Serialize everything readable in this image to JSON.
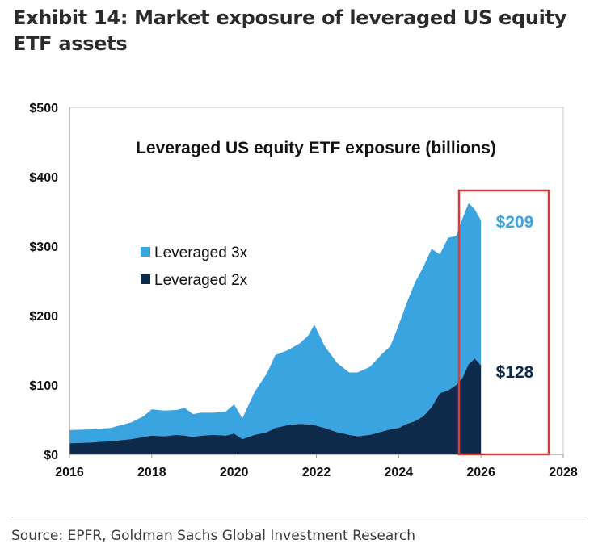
{
  "exhibit_title": "Exhibit 14: Market exposure of leveraged US equity ETF assets",
  "source": "Source: EPFR, Goldman Sachs Global Investment Research",
  "colors": {
    "lev3x": "#3aa4e0",
    "lev2x": "#0d2a4a",
    "highlight": "#d93a3a",
    "callout3x": "#3aa4e0",
    "callout2x": "#0d2a4a"
  },
  "chart_data": {
    "type": "area",
    "stacked": true,
    "title": "Leveraged US equity ETF exposure (billions)",
    "xlabel": "",
    "ylabel": "",
    "xlim": [
      2016,
      2028
    ],
    "ylim": [
      0,
      500
    ],
    "x_ticks": [
      "2016",
      "2018",
      "2020",
      "2022",
      "2024",
      "2026",
      "2028"
    ],
    "y_ticks": [
      "$0",
      "$100",
      "$200",
      "$300",
      "$400",
      "$500"
    ],
    "grid": false,
    "legend_position": "left",
    "x": [
      2016.0,
      2016.5,
      2017.0,
      2017.5,
      2017.8,
      2018.0,
      2018.3,
      2018.6,
      2018.8,
      2019.0,
      2019.2,
      2019.5,
      2019.8,
      2020.0,
      2020.2,
      2020.5,
      2020.8,
      2021.0,
      2021.3,
      2021.6,
      2021.8,
      2021.95,
      2022.2,
      2022.5,
      2022.8,
      2023.0,
      2023.3,
      2023.6,
      2023.8,
      2024.0,
      2024.2,
      2024.4,
      2024.6,
      2024.8,
      2025.0,
      2025.2,
      2025.4,
      2025.55,
      2025.7,
      2025.85,
      2026.0
    ],
    "series": [
      {
        "name": "Leveraged 2x",
        "values": [
          16,
          17,
          19,
          22,
          25,
          27,
          26,
          28,
          27,
          25,
          27,
          28,
          27,
          30,
          22,
          28,
          32,
          38,
          42,
          44,
          43,
          42,
          38,
          32,
          28,
          26,
          28,
          33,
          36,
          38,
          44,
          48,
          55,
          68,
          88,
          92,
          100,
          110,
          130,
          138,
          128
        ]
      },
      {
        "name": "Leveraged 3x",
        "values": [
          19,
          19,
          19,
          24,
          30,
          38,
          37,
          36,
          40,
          33,
          33,
          32,
          35,
          42,
          30,
          62,
          85,
          105,
          108,
          116,
          128,
          145,
          118,
          100,
          90,
          92,
          98,
          112,
          120,
          148,
          175,
          200,
          215,
          228,
          200,
          220,
          215,
          230,
          232,
          215,
          209
        ]
      }
    ],
    "annotations": {
      "label_3x": "$209",
      "label_2x": "$128"
    }
  }
}
